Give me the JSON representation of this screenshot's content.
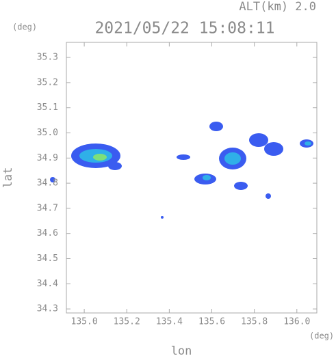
{
  "chart_data": {
    "type": "map",
    "title": "2021/05/22 15:08:11",
    "altitude_label": "ALT(km) 2.0",
    "y_unit": "(deg)",
    "x_unit": "(deg)",
    "xlabel": "lon",
    "ylabel": "lat",
    "xlim": [
      134.916,
      136.094
    ],
    "ylim": [
      34.284,
      35.36
    ],
    "xticks": [
      {
        "value": 135,
        "label": "135.0"
      },
      135.2,
      135.4,
      135.6,
      135.8,
      {
        "value": 136,
        "label": "136.0"
      }
    ],
    "yticks": [
      34.3,
      34.4,
      34.5,
      34.6,
      34.7,
      34.8,
      34.9,
      {
        "value": 35,
        "label": "35.0"
      },
      35.1,
      35.2,
      35.3
    ]
  }
}
